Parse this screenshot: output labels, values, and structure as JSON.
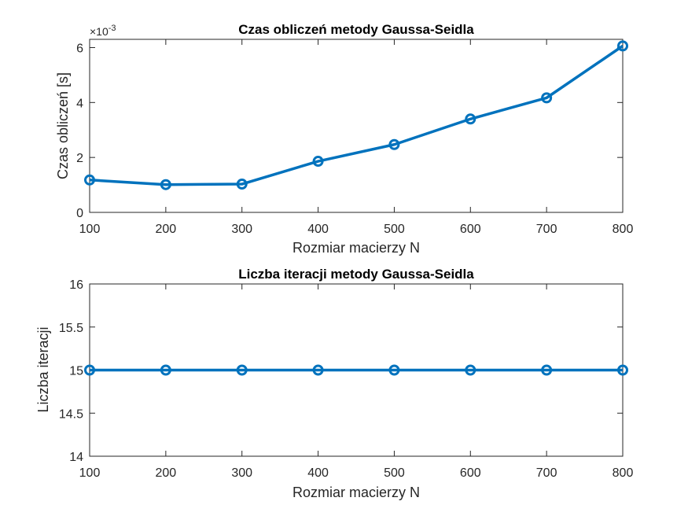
{
  "chart_data": [
    {
      "type": "line",
      "title": "Czas obliczeń metody Gaussa-Seidla",
      "xlabel": "Rozmiar macierzy N",
      "ylabel": "Czas obliczeń [s]",
      "y_exponent_label": "×10",
      "y_exponent": "-3",
      "x": [
        100,
        200,
        300,
        400,
        500,
        600,
        700,
        800
      ],
      "y": [
        1.18,
        1.01,
        1.03,
        1.86,
        2.47,
        3.4,
        4.17,
        6.06
      ],
      "xlim": [
        100,
        800
      ],
      "ylim": [
        0,
        6.3
      ],
      "x_ticks": [
        "100",
        "200",
        "300",
        "400",
        "500",
        "600",
        "700",
        "800"
      ],
      "y_ticks": [
        "0",
        "2",
        "4",
        "6"
      ],
      "color": "#0072BD",
      "grid": false,
      "marker": "circle"
    },
    {
      "type": "line",
      "title": "Liczba iteracji metody Gaussa-Seidla",
      "xlabel": "Rozmiar macierzy N",
      "ylabel": "Liczba iteracji",
      "x": [
        100,
        200,
        300,
        400,
        500,
        600,
        700,
        800
      ],
      "y": [
        15,
        15,
        15,
        15,
        15,
        15,
        15,
        15
      ],
      "xlim": [
        100,
        800
      ],
      "ylim": [
        14,
        16
      ],
      "x_ticks": [
        "100",
        "200",
        "300",
        "400",
        "500",
        "600",
        "700",
        "800"
      ],
      "y_ticks": [
        "14",
        "14.5",
        "15",
        "15.5",
        "16"
      ],
      "color": "#0072BD",
      "grid": false,
      "marker": "circle"
    }
  ]
}
